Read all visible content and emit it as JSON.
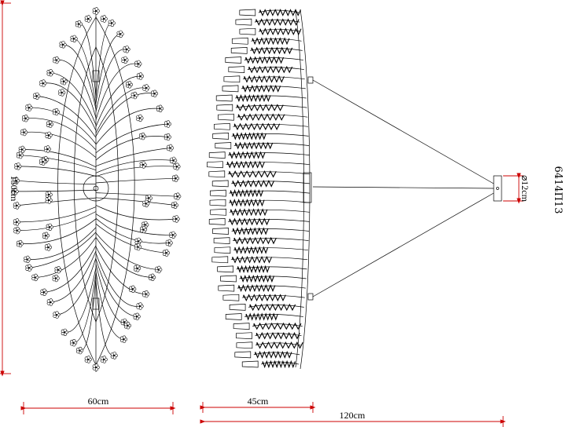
{
  "dimensions": {
    "height_label": "150cm",
    "front_width_label": "60cm",
    "side_width_label": "45cm",
    "total_width_label": "120cm",
    "canopy_diameter_label": "⌀12cm"
  },
  "product_code": "6414П13",
  "colors": {
    "line": "#000000",
    "dimension": "#cc0000",
    "background": "#ffffff"
  }
}
